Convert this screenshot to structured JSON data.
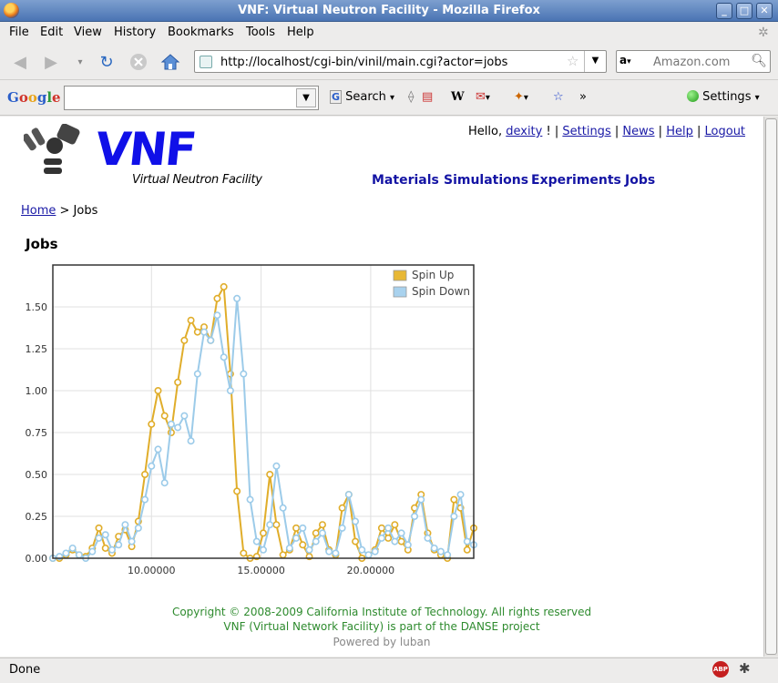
{
  "window": {
    "title": "VNF: Virtual Neutron Facility - Mozilla Firefox"
  },
  "menu": [
    {
      "label": "File"
    },
    {
      "label": "Edit"
    },
    {
      "label": "View"
    },
    {
      "label": "History"
    },
    {
      "label": "Bookmarks"
    },
    {
      "label": "Tools"
    },
    {
      "label": "Help"
    }
  ],
  "nav": {
    "url": "http://localhost/cgi-bin/vinil/main.cgi?actor=jobs",
    "search_placeholder": "Amazon.com"
  },
  "google_toolbar": {
    "logo": "Google",
    "search_label": "Search",
    "settings_label": "Settings",
    "more": "»"
  },
  "page": {
    "logo_word": "VNF",
    "logo_sub": "Virtual Neutron Facility",
    "greeting": "Hello,",
    "user": "dexity",
    "user_suffix": "!",
    "sep": "|",
    "user_links": [
      "Settings",
      "News",
      "Help",
      "Logout"
    ],
    "main_nav": [
      "Materials",
      "Simulations",
      "Experiments",
      "Jobs"
    ],
    "breadcrumb_home": "Home",
    "breadcrumb_rest": "> Jobs",
    "title": "Jobs",
    "footer_copyright": "Copyright © 2008-2009 California Institute of Technology. All rights reserved",
    "footer_danse": "VNF (Virtual Network Facility) is part of the DANSE project",
    "footer_powered": "Powered by luban"
  },
  "status": {
    "text": "Done"
  },
  "colors": {
    "spin_up": "#e8b835",
    "spin_down": "#a9d2ee",
    "link": "#1a1aa6",
    "footer_green": "#2e8b2e"
  },
  "chart_data": {
    "type": "line",
    "xlim": [
      5.5,
      24.7
    ],
    "ylim": [
      0,
      1.75
    ],
    "xticks": [
      "10.00000",
      "15.00000",
      "20.00000"
    ],
    "xtick_values": [
      10,
      15,
      20
    ],
    "yticks": [
      "0.00",
      "0.25",
      "0.50",
      "0.75",
      "1.00",
      "1.25",
      "1.50"
    ],
    "ytick_values": [
      0,
      0.25,
      0.5,
      0.75,
      1.0,
      1.25,
      1.5
    ],
    "grid": true,
    "legend_position": "top-right",
    "series": [
      {
        "name": "Spin Up",
        "x": [
          5.5,
          5.8,
          6.1,
          6.4,
          6.7,
          7.0,
          7.3,
          7.6,
          7.9,
          8.2,
          8.5,
          8.8,
          9.1,
          9.4,
          9.7,
          10.0,
          10.3,
          10.6,
          10.9,
          11.2,
          11.5,
          11.8,
          12.1,
          12.4,
          12.7,
          13.0,
          13.3,
          13.6,
          13.9,
          14.2,
          14.5,
          14.8,
          15.1,
          15.4,
          15.7,
          16.0,
          16.3,
          16.6,
          16.9,
          17.2,
          17.5,
          17.8,
          18.1,
          18.4,
          18.7,
          19.0,
          19.3,
          19.6,
          19.9,
          20.2,
          20.5,
          20.8,
          21.1,
          21.4,
          21.7,
          22.0,
          22.3,
          22.6,
          22.9,
          23.2,
          23.5,
          23.8,
          24.1,
          24.4,
          24.7
        ],
        "y": [
          0.0,
          0.0,
          0.02,
          0.05,
          0.02,
          0.01,
          0.06,
          0.18,
          0.06,
          0.03,
          0.13,
          0.17,
          0.07,
          0.22,
          0.5,
          0.8,
          1.0,
          0.85,
          0.75,
          1.05,
          1.3,
          1.42,
          1.35,
          1.38,
          1.3,
          1.55,
          1.62,
          1.1,
          0.4,
          0.03,
          0.0,
          0.01,
          0.15,
          0.5,
          0.2,
          0.02,
          0.05,
          0.18,
          0.08,
          0.01,
          0.15,
          0.2,
          0.05,
          0.02,
          0.3,
          0.38,
          0.1,
          0.0,
          0.02,
          0.05,
          0.18,
          0.12,
          0.2,
          0.1,
          0.05,
          0.3,
          0.38,
          0.15,
          0.05,
          0.02,
          0.0,
          0.35,
          0.3,
          0.05,
          0.18
        ]
      },
      {
        "name": "Spin Down",
        "x": [
          5.5,
          5.8,
          6.1,
          6.4,
          6.7,
          7.0,
          7.3,
          7.6,
          7.9,
          8.2,
          8.5,
          8.8,
          9.1,
          9.4,
          9.7,
          10.0,
          10.3,
          10.6,
          10.9,
          11.2,
          11.5,
          11.8,
          12.1,
          12.4,
          12.7,
          13.0,
          13.3,
          13.6,
          13.9,
          14.2,
          14.5,
          14.8,
          15.1,
          15.4,
          15.7,
          16.0,
          16.3,
          16.6,
          16.9,
          17.2,
          17.5,
          17.8,
          18.1,
          18.4,
          18.7,
          19.0,
          19.3,
          19.6,
          19.9,
          20.2,
          20.5,
          20.8,
          21.1,
          21.4,
          21.7,
          22.0,
          22.3,
          22.6,
          22.9,
          23.2,
          23.5,
          23.8,
          24.1,
          24.4,
          24.7
        ],
        "y": [
          0.0,
          0.01,
          0.03,
          0.06,
          0.02,
          0.0,
          0.04,
          0.12,
          0.14,
          0.05,
          0.08,
          0.2,
          0.1,
          0.18,
          0.35,
          0.55,
          0.65,
          0.45,
          0.8,
          0.78,
          0.85,
          0.7,
          1.1,
          1.35,
          1.3,
          1.45,
          1.2,
          1.0,
          1.55,
          1.1,
          0.35,
          0.1,
          0.05,
          0.2,
          0.55,
          0.3,
          0.06,
          0.12,
          0.18,
          0.05,
          0.1,
          0.15,
          0.04,
          0.03,
          0.18,
          0.38,
          0.22,
          0.05,
          0.02,
          0.04,
          0.12,
          0.18,
          0.1,
          0.15,
          0.08,
          0.25,
          0.35,
          0.12,
          0.06,
          0.04,
          0.02,
          0.25,
          0.38,
          0.1,
          0.08
        ]
      }
    ]
  }
}
